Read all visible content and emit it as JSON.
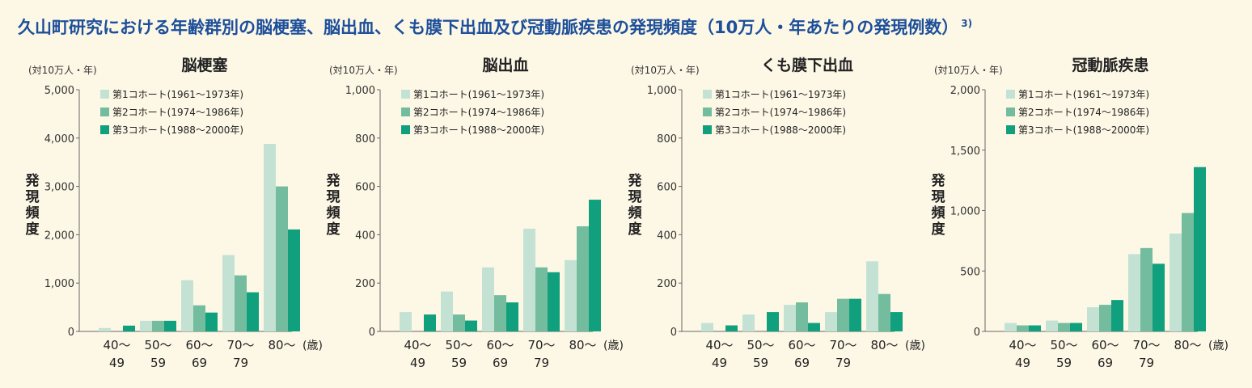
{
  "title": "久山町研究における年齢群別の脳梗塞、脳出血、くも膜下出血及び冠動脈疾患の発現頻度（10万人・年あたりの発現例数）",
  "title_ref": "3)",
  "colors": {
    "cohort1": "#c3e2d4",
    "cohort2": "#74bc9e",
    "cohort3": "#10a07d",
    "title": "#1d4f9a"
  },
  "chart_data": [
    {
      "type": "bar",
      "title": "脳梗塞",
      "unit": "(対10万人・年)",
      "ylabel": "発現頻度",
      "xunit": "(歳)",
      "categories": [
        [
          "40〜",
          "49"
        ],
        [
          "50〜",
          "59"
        ],
        [
          "60〜",
          "69"
        ],
        [
          "70〜",
          "79"
        ],
        [
          "80〜",
          ""
        ]
      ],
      "ylim": [
        0,
        5000
      ],
      "yticks": [
        0,
        1000,
        2000,
        3000,
        4000,
        5000
      ],
      "ytick_labels": [
        "0",
        "1,000",
        "2,000",
        "3,000",
        "4,000",
        "5,000"
      ],
      "series": [
        {
          "name": "第1コホート(1961〜1973年)",
          "values": [
            70,
            220,
            1060,
            1580,
            3880
          ]
        },
        {
          "name": "第2コホート(1974〜1986年)",
          "values": [
            0,
            220,
            540,
            1160,
            3000
          ]
        },
        {
          "name": "第3コホート(1988〜2000年)",
          "values": [
            120,
            220,
            390,
            810,
            2110
          ]
        }
      ]
    },
    {
      "type": "bar",
      "title": "脳出血",
      "unit": "(対10万人・年)",
      "ylabel": "発現頻度",
      "xunit": "(歳)",
      "categories": [
        [
          "40〜",
          "49"
        ],
        [
          "50〜",
          "59"
        ],
        [
          "60〜",
          "69"
        ],
        [
          "70〜",
          "79"
        ],
        [
          "80〜",
          ""
        ]
      ],
      "ylim": [
        0,
        1000
      ],
      "yticks": [
        0,
        200,
        400,
        600,
        800,
        1000
      ],
      "ytick_labels": [
        "0",
        "200",
        "400",
        "600",
        "800",
        "1,000"
      ],
      "series": [
        {
          "name": "第1コホート(1961〜1973年)",
          "values": [
            80,
            165,
            265,
            425,
            295
          ]
        },
        {
          "name": "第2コホート(1974〜1986年)",
          "values": [
            0,
            70,
            150,
            265,
            435
          ]
        },
        {
          "name": "第3コホート(1988〜2000年)",
          "values": [
            70,
            45,
            120,
            245,
            545
          ]
        }
      ]
    },
    {
      "type": "bar",
      "title": "くも膜下出血",
      "unit": "(対10万人・年)",
      "ylabel": "発現頻度",
      "xunit": "(歳)",
      "categories": [
        [
          "40〜",
          "49"
        ],
        [
          "50〜",
          "59"
        ],
        [
          "60〜",
          "69"
        ],
        [
          "70〜",
          "79"
        ],
        [
          "80〜",
          ""
        ]
      ],
      "ylim": [
        0,
        1000
      ],
      "yticks": [
        0,
        200,
        400,
        600,
        800,
        1000
      ],
      "ytick_labels": [
        "0",
        "200",
        "400",
        "600",
        "800",
        "1,000"
      ],
      "series": [
        {
          "name": "第1コホート(1961〜1973年)",
          "values": [
            35,
            70,
            110,
            80,
            290
          ]
        },
        {
          "name": "第2コホート(1974〜1986年)",
          "values": [
            0,
            0,
            120,
            135,
            155
          ]
        },
        {
          "name": "第3コホート(1988〜2000年)",
          "values": [
            25,
            80,
            35,
            135,
            80
          ]
        }
      ]
    },
    {
      "type": "bar",
      "title": "冠動脈疾患",
      "unit": "(対10万人・年)",
      "ylabel": "発現頻度",
      "xunit": "(歳)",
      "categories": [
        [
          "40〜",
          "49"
        ],
        [
          "50〜",
          "59"
        ],
        [
          "60〜",
          "69"
        ],
        [
          "70〜",
          "79"
        ],
        [
          "80〜",
          ""
        ]
      ],
      "ylim": [
        0,
        2000
      ],
      "yticks": [
        0,
        500,
        1000,
        1500,
        2000
      ],
      "ytick_labels": [
        "0",
        "500",
        "1,000",
        "1,500",
        "2,000"
      ],
      "series": [
        {
          "name": "第1コホート(1961〜1973年)",
          "values": [
            70,
            90,
            200,
            640,
            810
          ]
        },
        {
          "name": "第2コホート(1974〜1986年)",
          "values": [
            50,
            70,
            220,
            690,
            980
          ]
        },
        {
          "name": "第3コホート(1988〜2000年)",
          "values": [
            50,
            70,
            260,
            560,
            1360
          ]
        }
      ]
    }
  ]
}
